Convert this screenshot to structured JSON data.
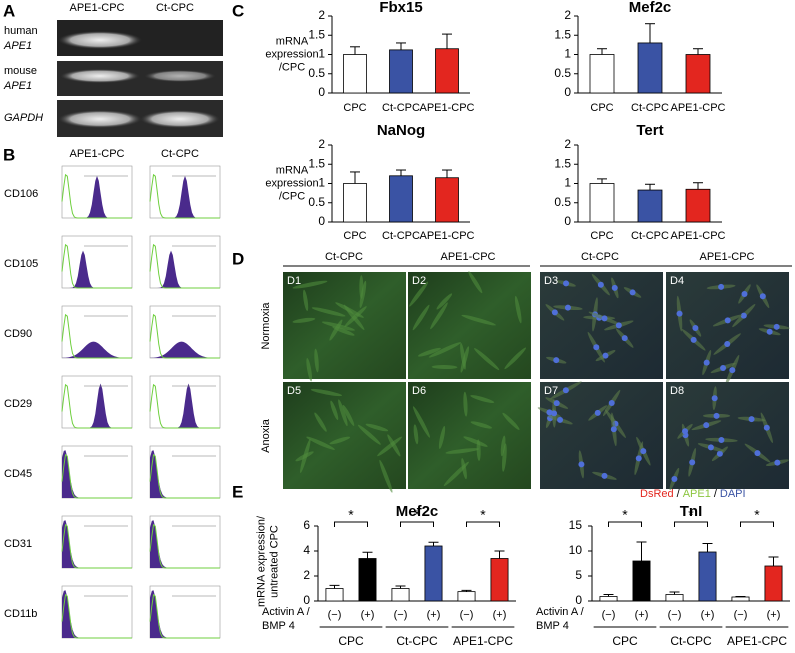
{
  "panel_a": {
    "label": "A",
    "columns": [
      "APE1-CPC",
      "Ct-CPC"
    ],
    "rows": [
      [
        "human",
        "APE1"
      ],
      [
        "mouse",
        "APE1"
      ],
      [
        "GAPDH"
      ]
    ]
  },
  "panel_b": {
    "label": "B",
    "columns": [
      "APE1-CPC",
      "Ct-CPC"
    ],
    "rows": [
      "CD106",
      "CD105",
      "CD90",
      "CD29",
      "CD45",
      "CD31",
      "CD11b"
    ]
  },
  "panel_c": {
    "label": "C"
  },
  "panel_d": {
    "label": "D",
    "columns": [
      "Ct-CPC",
      "APE1-CPC",
      "Ct-CPC",
      "APE1-CPC"
    ],
    "rows": [
      "Normoxia",
      "Anoxia"
    ],
    "images": [
      "D1",
      "D2",
      "D3",
      "D4",
      "D5",
      "D6",
      "D7",
      "D8"
    ],
    "legend": [
      {
        "text": "DsRed",
        "color": "#e3261f"
      },
      {
        "text": "APE1",
        "color": "#8cc63f"
      },
      {
        "text": "DAPI",
        "color": "#3a53a4"
      }
    ],
    "separator": "/"
  },
  "panel_e": {
    "label": "E"
  },
  "chart_data": [
    {
      "type": "bar",
      "title": "Fbx15",
      "ylabel": [
        "mRNA",
        "expression",
        "/CPC"
      ],
      "categories": [
        "CPC",
        "Ct-CPC",
        "APE1-CPC"
      ],
      "values": [
        1.0,
        1.12,
        1.15
      ],
      "errors": [
        0.2,
        0.18,
        0.38
      ],
      "colors": [
        "#ffffff",
        "#3a53a4",
        "#e3261f"
      ],
      "ylim": [
        0,
        2
      ],
      "yticks": [
        0,
        0.5,
        1,
        1.5,
        2
      ]
    },
    {
      "type": "bar",
      "title": "Mef2c",
      "categories": [
        "CPC",
        "Ct-CPC",
        "APE1-CPC"
      ],
      "values": [
        1.0,
        1.3,
        1.0
      ],
      "errors": [
        0.15,
        0.5,
        0.15
      ],
      "colors": [
        "#ffffff",
        "#3a53a4",
        "#e3261f"
      ],
      "ylim": [
        0,
        2
      ],
      "yticks": [
        0,
        0.5,
        1,
        1.5,
        2
      ]
    },
    {
      "type": "bar",
      "title": "NaNog",
      "ylabel": [
        "mRNA",
        "expression",
        "/CPC"
      ],
      "categories": [
        "CPC",
        "Ct-CPC",
        "APE1-CPC"
      ],
      "values": [
        1.0,
        1.2,
        1.15
      ],
      "errors": [
        0.3,
        0.15,
        0.2
      ],
      "colors": [
        "#ffffff",
        "#3a53a4",
        "#e3261f"
      ],
      "ylim": [
        0,
        2
      ],
      "yticks": [
        0,
        0.5,
        1,
        1.5,
        2
      ]
    },
    {
      "type": "bar",
      "title": "Tert",
      "categories": [
        "CPC",
        "Ct-CPC",
        "APE1-CPC"
      ],
      "values": [
        1.0,
        0.83,
        0.85
      ],
      "errors": [
        0.12,
        0.15,
        0.17
      ],
      "colors": [
        "#ffffff",
        "#3a53a4",
        "#e3261f"
      ],
      "ylim": [
        0,
        2
      ],
      "yticks": [
        0,
        0.5,
        1,
        1.5,
        2
      ]
    },
    {
      "type": "bar",
      "title": "Mef2c",
      "ylabel": [
        "mRNA expression/",
        "untreated CPC"
      ],
      "x_label": [
        "Activin A /",
        "BMP 4"
      ],
      "categories": [
        "(−)",
        "(+)",
        "(−)",
        "(+)",
        "(−)",
        "(+)"
      ],
      "groups": [
        "CPC",
        "Ct-CPC",
        "APE1-CPC"
      ],
      "values": [
        1.0,
        3.4,
        1.0,
        4.4,
        0.75,
        3.4
      ],
      "errors": [
        0.25,
        0.5,
        0.2,
        0.3,
        0.1,
        0.6
      ],
      "colors": [
        "#ffffff",
        "#000000",
        "#ffffff",
        "#3a53a4",
        "#ffffff",
        "#e3261f"
      ],
      "annotations": [
        "*",
        "*",
        "*"
      ],
      "ylim": [
        0,
        6
      ],
      "yticks": [
        0,
        2,
        4,
        6
      ]
    },
    {
      "type": "bar",
      "title": "TnI",
      "x_label": [
        "Activin A /",
        "BMP 4"
      ],
      "categories": [
        "(−)",
        "(+)",
        "(−)",
        "(+)",
        "(−)",
        "(+)"
      ],
      "groups": [
        "CPC",
        "Ct-CPC",
        "APE1-CPC"
      ],
      "values": [
        0.9,
        8.0,
        1.3,
        9.8,
        0.8,
        7.0
      ],
      "errors": [
        0.4,
        3.8,
        0.5,
        1.7,
        0.1,
        1.8
      ],
      "colors": [
        "#ffffff",
        "#000000",
        "#ffffff",
        "#3a53a4",
        "#ffffff",
        "#e3261f"
      ],
      "annotations": [
        "*",
        "*",
        "*"
      ],
      "ylim": [
        0,
        15
      ],
      "yticks": [
        0,
        5,
        10,
        15
      ]
    }
  ]
}
